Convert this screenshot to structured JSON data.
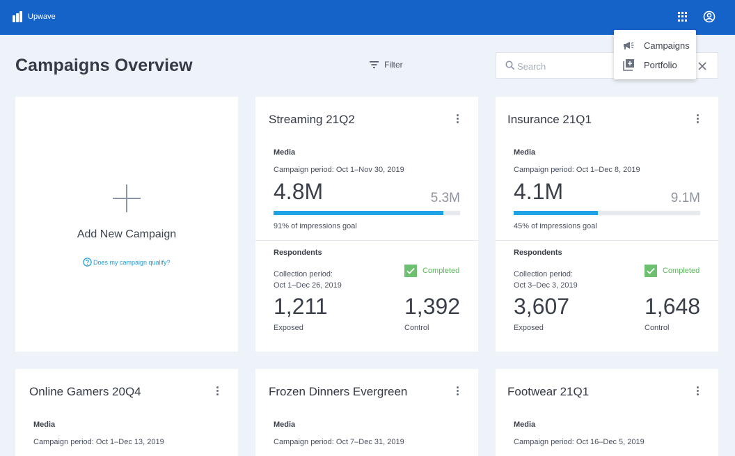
{
  "app": {
    "name": "Upwave",
    "icons": {
      "apps": "apps-grid-icon",
      "account": "account-circle-icon"
    },
    "colors": {
      "header": "#1562c9",
      "accent": "#1ea3e6",
      "success": "#5cb85c"
    }
  },
  "nav_menu": {
    "items": [
      {
        "label": "Campaigns",
        "icon": "megaphone-icon"
      },
      {
        "label": "Portfolio",
        "icon": "library-add-icon"
      }
    ]
  },
  "page": {
    "title": "Campaigns Overview",
    "filter_label": "Filter",
    "search_placeholder": "Search",
    "search_value": ""
  },
  "add_card": {
    "label": "Add New Campaign",
    "qualify_link": "Does my campaign qualify?"
  },
  "campaigns": [
    {
      "title": "Streaming 21Q2",
      "media_label": "Media",
      "campaign_period": "Campaign period: Oct 1–Nov 30, 2019",
      "impressions": "4.8M",
      "impressions_goal": "5.3M",
      "goal_progress": 0.91,
      "goal_text": "91% of impressions goal",
      "respondents_label": "Respondents",
      "collection_period_label": "Collection period:",
      "collection_period": "Oct 1–Dec 26, 2019",
      "status": "Completed",
      "exposed": "1,211",
      "exposed_label": "Exposed",
      "control": "1,392",
      "control_label": "Control"
    },
    {
      "title": "Insurance 21Q1",
      "media_label": "Media",
      "campaign_period": "Campaign period: Oct 1–Dec 8, 2019",
      "impressions": "4.1M",
      "impressions_goal": "9.1M",
      "goal_progress": 0.45,
      "goal_text": "45% of impressions goal",
      "respondents_label": "Respondents",
      "collection_period_label": "Collection period:",
      "collection_period": "Oct 3–Dec 3, 2019",
      "status": "Completed",
      "exposed": "3,607",
      "exposed_label": "Exposed",
      "control": "1,648",
      "control_label": "Control"
    },
    {
      "title": "Online Gamers 20Q4",
      "media_label": "Media",
      "campaign_period": "Campaign period: Oct 1–Dec 13, 2019"
    },
    {
      "title": "Frozen Dinners Evergreen",
      "media_label": "Media",
      "campaign_period": "Campaign period: Oct 7–Dec 31, 2019"
    },
    {
      "title": "Footwear 21Q1",
      "media_label": "Media",
      "campaign_period": "Campaign period: Oct 16–Dec 5, 2019"
    }
  ]
}
